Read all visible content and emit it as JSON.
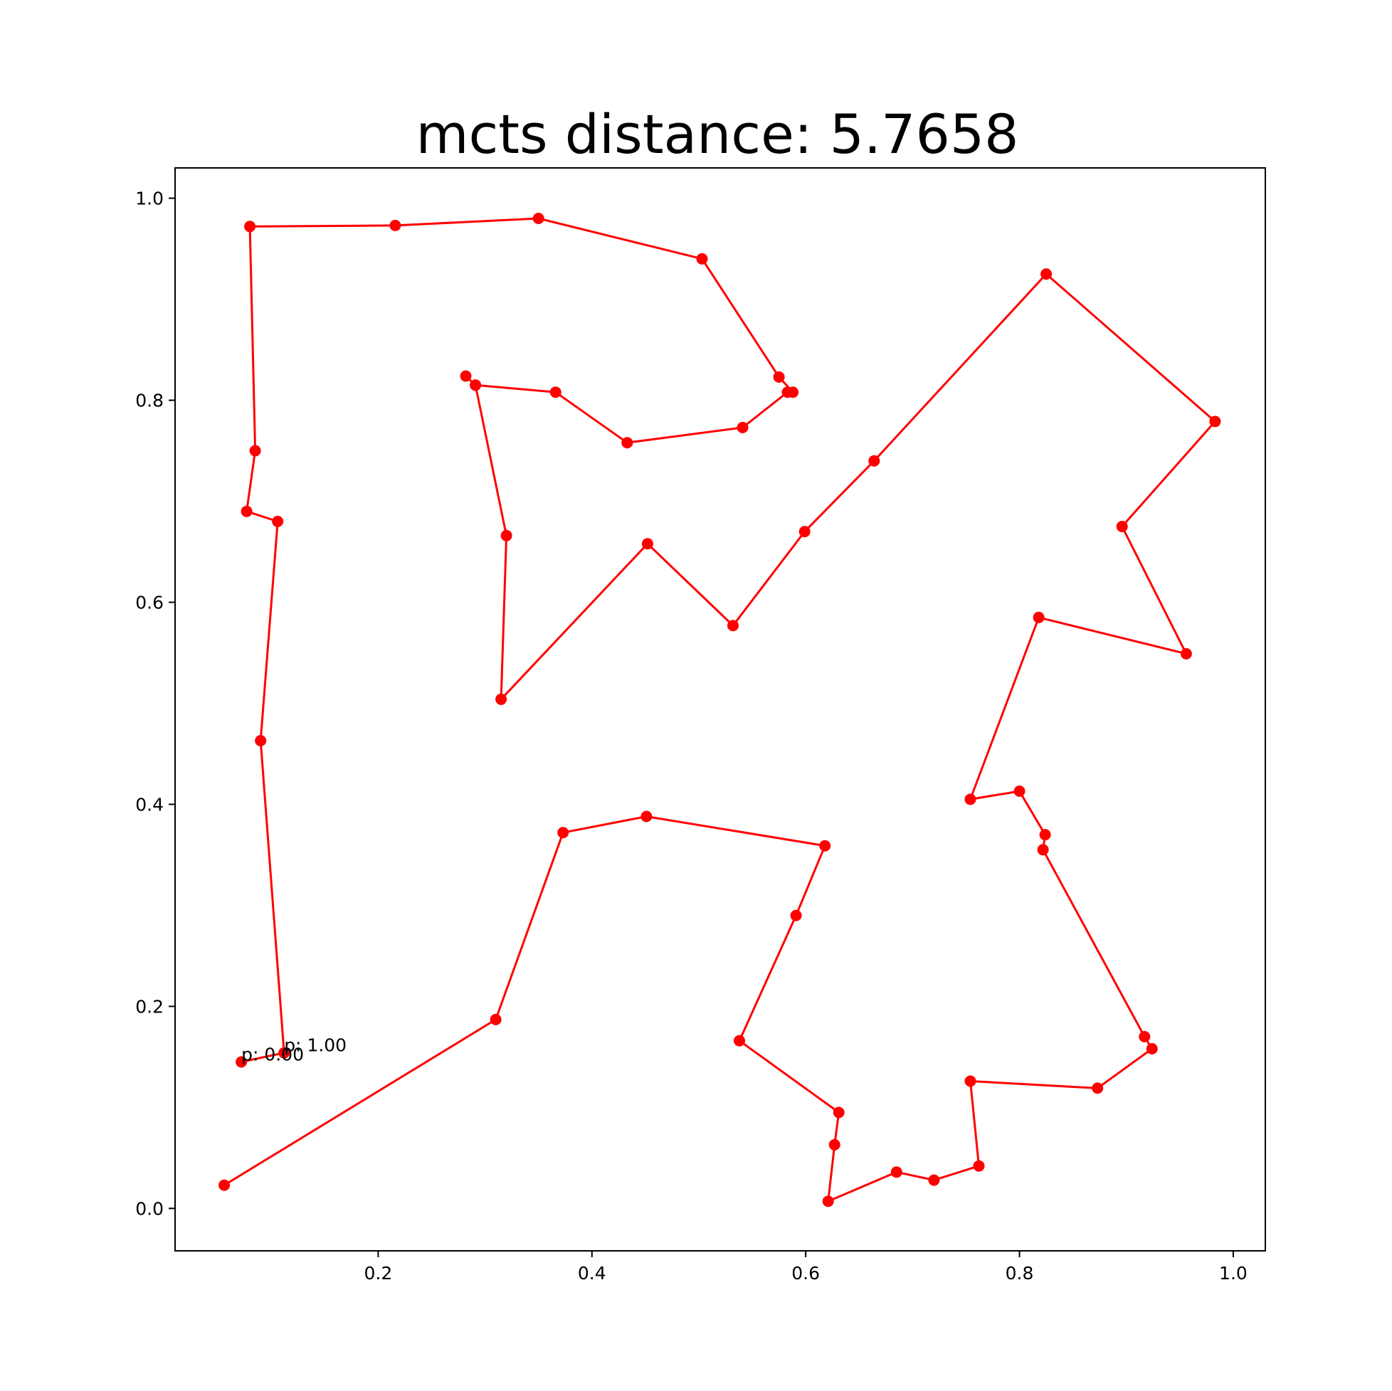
{
  "chart_data": {
    "type": "line",
    "title": "mcts distance: 5.7658",
    "xlabel": "",
    "ylabel": "",
    "xlim": [
      0.01,
      1.03
    ],
    "ylim": [
      -0.042,
      1.03
    ],
    "grid": false,
    "color": "#ff0000",
    "xticks": [
      0.2,
      0.4,
      0.6,
      0.8,
      1.0
    ],
    "xtick_labels": [
      "0.2",
      "0.4",
      "0.6",
      "0.8",
      "1.0"
    ],
    "yticks": [
      0.0,
      0.2,
      0.4,
      0.6,
      0.8,
      1.0
    ],
    "ytick_labels": [
      "0.0",
      "0.2",
      "0.4",
      "0.6",
      "0.8",
      "1.0"
    ],
    "points": [
      [
        0.072,
        0.145
      ],
      [
        0.112,
        0.154
      ],
      [
        0.09,
        0.463
      ],
      [
        0.106,
        0.68
      ],
      [
        0.077,
        0.69
      ],
      [
        0.085,
        0.75
      ],
      [
        0.08,
        0.972
      ],
      [
        0.216,
        0.973
      ],
      [
        0.35,
        0.98
      ],
      [
        0.503,
        0.94
      ],
      [
        0.575,
        0.823
      ],
      [
        0.588,
        0.808
      ],
      [
        0.583,
        0.808
      ],
      [
        0.541,
        0.773
      ],
      [
        0.433,
        0.758
      ],
      [
        0.366,
        0.808
      ],
      [
        0.291,
        0.815
      ],
      [
        0.282,
        0.824
      ],
      [
        0.291,
        0.815
      ],
      [
        0.32,
        0.666
      ],
      [
        0.315,
        0.504
      ],
      [
        0.452,
        0.658
      ],
      [
        0.532,
        0.577
      ],
      [
        0.599,
        0.67
      ],
      [
        0.664,
        0.74
      ],
      [
        0.825,
        0.925
      ],
      [
        0.983,
        0.779
      ],
      [
        0.896,
        0.675
      ],
      [
        0.956,
        0.549
      ],
      [
        0.818,
        0.585
      ],
      [
        0.754,
        0.405
      ],
      [
        0.8,
        0.413
      ],
      [
        0.824,
        0.37
      ],
      [
        0.822,
        0.355
      ],
      [
        0.917,
        0.17
      ],
      [
        0.924,
        0.158
      ],
      [
        0.873,
        0.119
      ],
      [
        0.754,
        0.126
      ],
      [
        0.762,
        0.042
      ],
      [
        0.72,
        0.028
      ],
      [
        0.685,
        0.036
      ],
      [
        0.621,
        0.007
      ],
      [
        0.627,
        0.063
      ],
      [
        0.631,
        0.095
      ],
      [
        0.538,
        0.166
      ],
      [
        0.591,
        0.29
      ],
      [
        0.618,
        0.359
      ],
      [
        0.451,
        0.388
      ],
      [
        0.373,
        0.372
      ],
      [
        0.31,
        0.187
      ],
      [
        0.056,
        0.023
      ]
    ],
    "annotations": [
      {
        "text": "p: 0.00",
        "x": 0.072,
        "y": 0.145
      },
      {
        "text": "p: 1.00",
        "x": 0.112,
        "y": 0.154
      }
    ]
  }
}
